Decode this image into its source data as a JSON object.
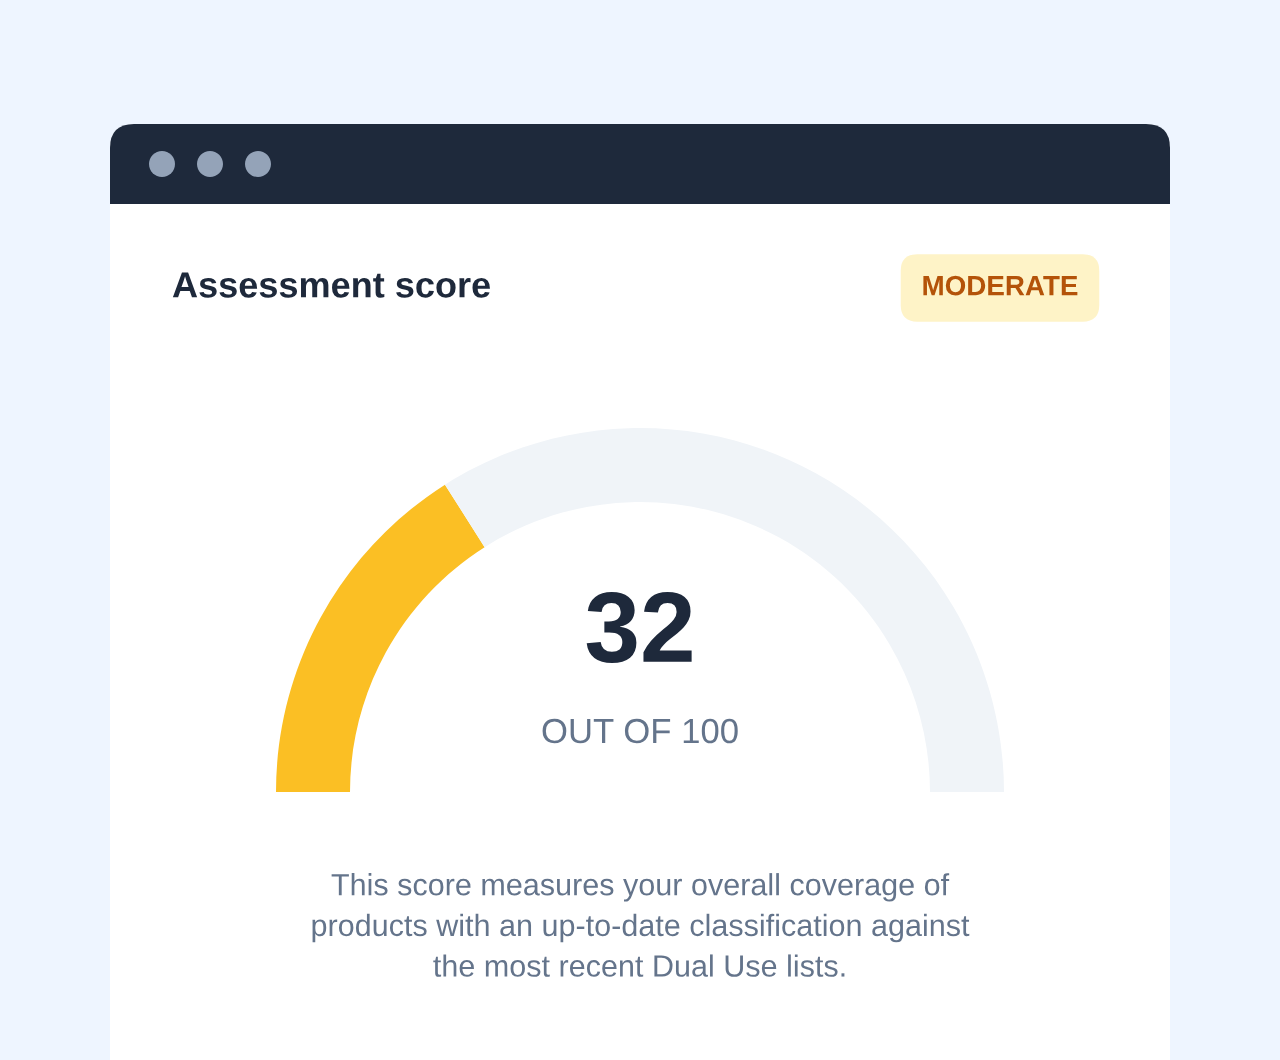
{
  "chart_data": {
    "type": "donut",
    "title": "Assessment score",
    "subtitle": "MODERATE",
    "categories": [
      null,
      null
    ],
    "values": [
      32,
      68
    ],
    "colors": [
      "#fbbf24",
      "#f0f4f8"
    ],
    "annotations": [
      "32",
      "OUT OF 100",
      "This score measures your overall coverage of\nproducts with an up-to-date classification against\nthe most recent Dual Use lists."
    ]
  }
}
